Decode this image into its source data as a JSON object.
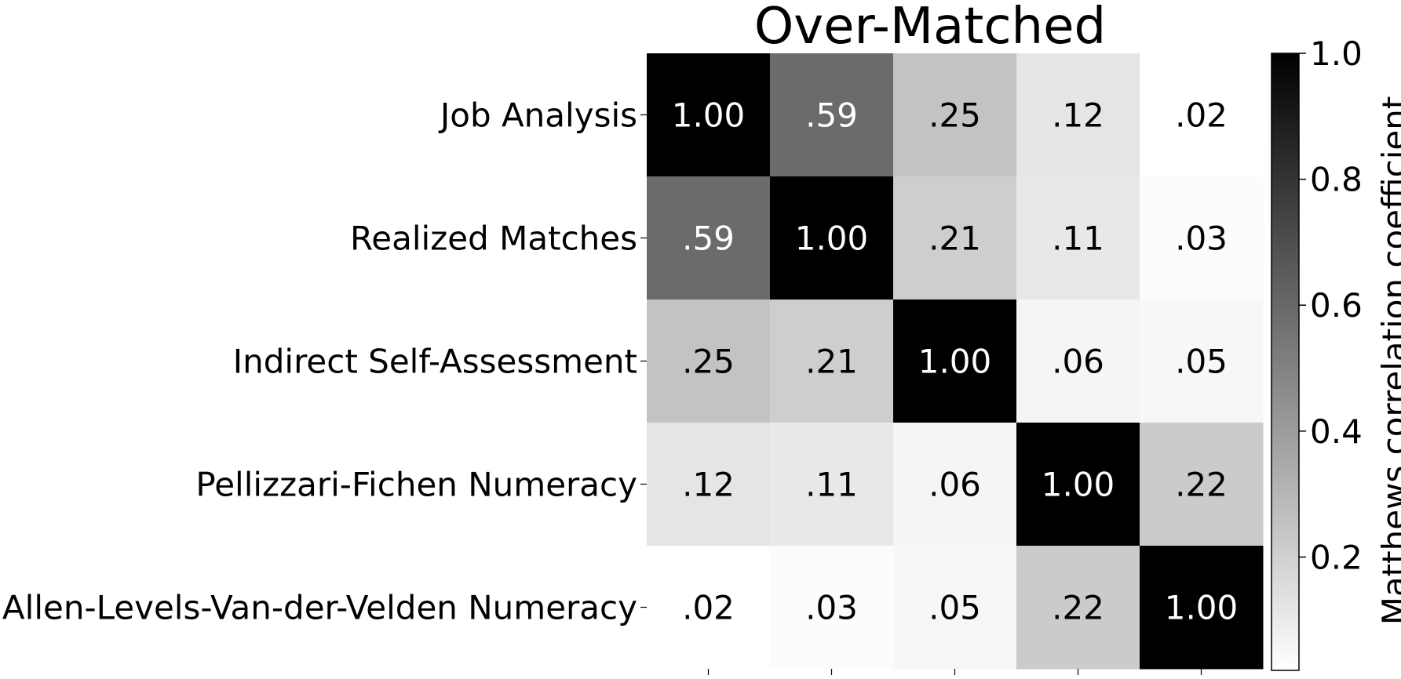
{
  "chart_data": {
    "type": "heatmap",
    "title": "Over-Matched",
    "rows": [
      "Job Analysis",
      "Realized Matches",
      "Indirect Self-Assessment",
      "Pellizzari-Fichen Numeracy",
      "Allen-Levels-Van-der-Velden Numeracy"
    ],
    "columns": [
      "",
      "",
      "",
      "",
      ""
    ],
    "values": [
      [
        1.0,
        0.59,
        0.25,
        0.12,
        0.02
      ],
      [
        0.59,
        1.0,
        0.21,
        0.11,
        0.03
      ],
      [
        0.25,
        0.21,
        1.0,
        0.06,
        0.05
      ],
      [
        0.12,
        0.11,
        0.06,
        1.0,
        0.22
      ],
      [
        0.02,
        0.03,
        0.05,
        0.22,
        1.0
      ]
    ],
    "cell_labels": [
      [
        "1.00",
        ".59",
        ".25",
        ".12",
        ".02"
      ],
      [
        ".59",
        "1.00",
        ".21",
        ".11",
        ".03"
      ],
      [
        ".25",
        ".21",
        "1.00",
        ".06",
        ".05"
      ],
      [
        ".12",
        ".11",
        ".06",
        "1.00",
        ".22"
      ],
      [
        ".02",
        ".03",
        ".05",
        ".22",
        "1.00"
      ]
    ],
    "colorscale": {
      "low_color": "#ffffff",
      "high_color": "#000000",
      "range": [
        0.02,
        1.0
      ]
    },
    "colorbar": {
      "label": "Matthews correlation coefficient",
      "ticks": [
        "0.2",
        "0.4",
        "0.6",
        "0.8",
        "1.0"
      ],
      "tick_values": [
        0.2,
        0.4,
        0.6,
        0.8,
        1.0
      ]
    }
  }
}
